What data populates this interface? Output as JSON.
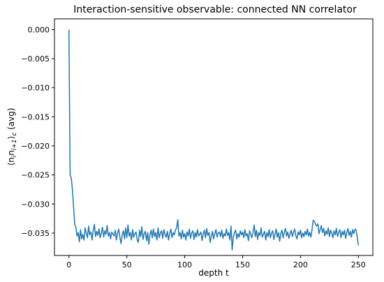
{
  "chart_data": {
    "type": "line",
    "title": "Interaction-sensitive observable: connected NN correlator",
    "xlabel": "depth t",
    "ylabel": "⟨n_i n_{i+1}⟩_c (avg)",
    "xlim": [
      -12.5,
      262.5
    ],
    "ylim": [
      -0.03885,
      0.00185
    ],
    "x_ticks": [
      0,
      50,
      100,
      150,
      200,
      250
    ],
    "x_tick_labels": [
      "0",
      "50",
      "100",
      "150",
      "200",
      "250"
    ],
    "y_ticks": [
      0.0,
      -0.005,
      -0.01,
      -0.015,
      -0.02,
      -0.025,
      -0.03,
      -0.035
    ],
    "y_tick_labels": [
      "0.000",
      "−0.005",
      "−0.010",
      "−0.015",
      "−0.020",
      "−0.025",
      "−0.030",
      "−0.035"
    ],
    "grid": false,
    "line_color": "#1f77b4",
    "series": [
      {
        "x_start": 0,
        "x_step": 1,
        "values": [
          0.0,
          -0.025,
          -0.0255,
          -0.0275,
          -0.0305,
          -0.0335,
          -0.034,
          -0.0355,
          -0.0349,
          -0.0365,
          -0.0344,
          -0.036,
          -0.0352,
          -0.0362,
          -0.0341,
          -0.035,
          -0.0358,
          -0.0338,
          -0.0353,
          -0.0348,
          -0.0362,
          -0.0345,
          -0.0335,
          -0.0356,
          -0.0347,
          -0.0354,
          -0.0343,
          -0.0358,
          -0.035,
          -0.034,
          -0.0357,
          -0.0346,
          -0.0352,
          -0.0337,
          -0.0355,
          -0.0349,
          -0.036,
          -0.0348,
          -0.0352,
          -0.0355,
          -0.0345,
          -0.0362,
          -0.035,
          -0.0343,
          -0.0357,
          -0.0368,
          -0.0353,
          -0.0346,
          -0.036,
          -0.0341,
          -0.0358,
          -0.0336,
          -0.0355,
          -0.0349,
          -0.0362,
          -0.0344,
          -0.0357,
          -0.0351,
          -0.0348,
          -0.0362,
          -0.0366,
          -0.0345,
          -0.0356,
          -0.0339,
          -0.0361,
          -0.0351,
          -0.0347,
          -0.0363,
          -0.0349,
          -0.0369,
          -0.0353,
          -0.0345,
          -0.0358,
          -0.0343,
          -0.0356,
          -0.0349,
          -0.0362,
          -0.0341,
          -0.0358,
          -0.035,
          -0.0346,
          -0.0359,
          -0.0344,
          -0.0352,
          -0.0357,
          -0.0347,
          -0.0362,
          -0.0351,
          -0.0343,
          -0.0358,
          -0.0349,
          -0.0353,
          -0.0345,
          -0.0341,
          -0.0327,
          -0.0355,
          -0.0349,
          -0.036,
          -0.0345,
          -0.0357,
          -0.0351,
          -0.0362,
          -0.0348,
          -0.0355,
          -0.0343,
          -0.0359,
          -0.035,
          -0.0346,
          -0.0361,
          -0.0349,
          -0.0357,
          -0.0344,
          -0.0355,
          -0.0352,
          -0.0348,
          -0.0363,
          -0.0351,
          -0.0345,
          -0.0358,
          -0.0342,
          -0.0354,
          -0.0349,
          -0.0366,
          -0.0355,
          -0.0347,
          -0.036,
          -0.0351,
          -0.0344,
          -0.0357,
          -0.035,
          -0.0348,
          -0.0356,
          -0.0345,
          -0.0359,
          -0.0351,
          -0.0355,
          -0.0343,
          -0.0354,
          -0.0349,
          -0.0362,
          -0.0338,
          -0.0379,
          -0.0356,
          -0.0349,
          -0.0345,
          -0.036,
          -0.0351,
          -0.0357,
          -0.0346,
          -0.0353,
          -0.0348,
          -0.0358,
          -0.0344,
          -0.0355,
          -0.0351,
          -0.0363,
          -0.0346,
          -0.0352,
          -0.0358,
          -0.0349,
          -0.0336,
          -0.0356,
          -0.0345,
          -0.0361,
          -0.0349,
          -0.0354,
          -0.0341,
          -0.0357,
          -0.0352,
          -0.0347,
          -0.0362,
          -0.0349,
          -0.0356,
          -0.0344,
          -0.0358,
          -0.035,
          -0.0346,
          -0.0361,
          -0.0352,
          -0.0343,
          -0.0357,
          -0.0349,
          -0.0364,
          -0.0351,
          -0.0345,
          -0.0358,
          -0.0349,
          -0.0342,
          -0.0355,
          -0.0348,
          -0.0359,
          -0.0351,
          -0.0345,
          -0.0356,
          -0.0349,
          -0.0343,
          -0.0355,
          -0.036,
          -0.0348,
          -0.0353,
          -0.0345,
          -0.0358,
          -0.035,
          -0.0356,
          -0.0347,
          -0.0353,
          -0.0343,
          -0.0355,
          -0.0349,
          -0.0357,
          -0.0344,
          -0.0328,
          -0.033,
          -0.0335,
          -0.0338,
          -0.0334,
          -0.0351,
          -0.0344,
          -0.0337,
          -0.0349,
          -0.0342,
          -0.0355,
          -0.0346,
          -0.0352,
          -0.0341,
          -0.0356,
          -0.0345,
          -0.035,
          -0.0358,
          -0.0346,
          -0.0353,
          -0.0342,
          -0.0356,
          -0.0349,
          -0.0344,
          -0.0358,
          -0.0347,
          -0.0353,
          -0.0345,
          -0.0359,
          -0.0349,
          -0.0342,
          -0.0354,
          -0.0347,
          -0.0357,
          -0.0344,
          -0.0351,
          -0.0343,
          -0.0345,
          -0.0356,
          -0.0371
        ]
      }
    ]
  }
}
